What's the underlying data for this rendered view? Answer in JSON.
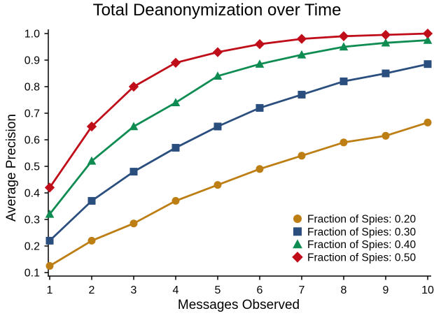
{
  "chart_data": {
    "type": "line",
    "title": "Total Deanonymization over Time",
    "xlabel": "Messages Observed",
    "ylabel": "Average Precision",
    "x": [
      1,
      2,
      3,
      4,
      5,
      6,
      7,
      8,
      9,
      10
    ],
    "xtick_labels": [
      "1",
      "2",
      "3",
      "4",
      "5",
      "6",
      "7",
      "8",
      "9",
      "10"
    ],
    "yticks": [
      0.1,
      0.2,
      0.3,
      0.4,
      0.5,
      0.6,
      0.7,
      0.8,
      0.9,
      1.0
    ],
    "ytick_labels": [
      "0.1",
      "0.2",
      "0.3",
      "0.4",
      "0.5",
      "0.6",
      "0.7",
      "0.8",
      "0.9",
      "1.0"
    ],
    "xlim": [
      0.97,
      10.1
    ],
    "ylim": [
      0.085,
      1.015
    ],
    "grid": false,
    "legend_position": "lower right",
    "legend_frame": false,
    "series": [
      {
        "name": "Fraction of Spies: 0.20",
        "marker": "circle",
        "color": "#BD7E14",
        "values": [
          0.125,
          0.22,
          0.285,
          0.37,
          0.43,
          0.49,
          0.54,
          0.59,
          0.615,
          0.665
        ]
      },
      {
        "name": "Fraction of Spies: 0.30",
        "marker": "square",
        "color": "#2A4E7E",
        "values": [
          0.22,
          0.37,
          0.48,
          0.57,
          0.65,
          0.72,
          0.77,
          0.82,
          0.85,
          0.885
        ]
      },
      {
        "name": "Fraction of Spies: 0.40",
        "marker": "triangle",
        "color": "#0E8C52",
        "values": [
          0.32,
          0.52,
          0.65,
          0.74,
          0.84,
          0.885,
          0.92,
          0.95,
          0.965,
          0.975
        ]
      },
      {
        "name": "Fraction of Spies: 0.50",
        "marker": "diamond",
        "color": "#C00D1A",
        "values": [
          0.42,
          0.65,
          0.8,
          0.89,
          0.93,
          0.96,
          0.98,
          0.99,
          0.995,
          1.0
        ]
      }
    ]
  },
  "colors": {
    "text": "#000000",
    "axis": "#000000",
    "background": "#ffffff"
  }
}
